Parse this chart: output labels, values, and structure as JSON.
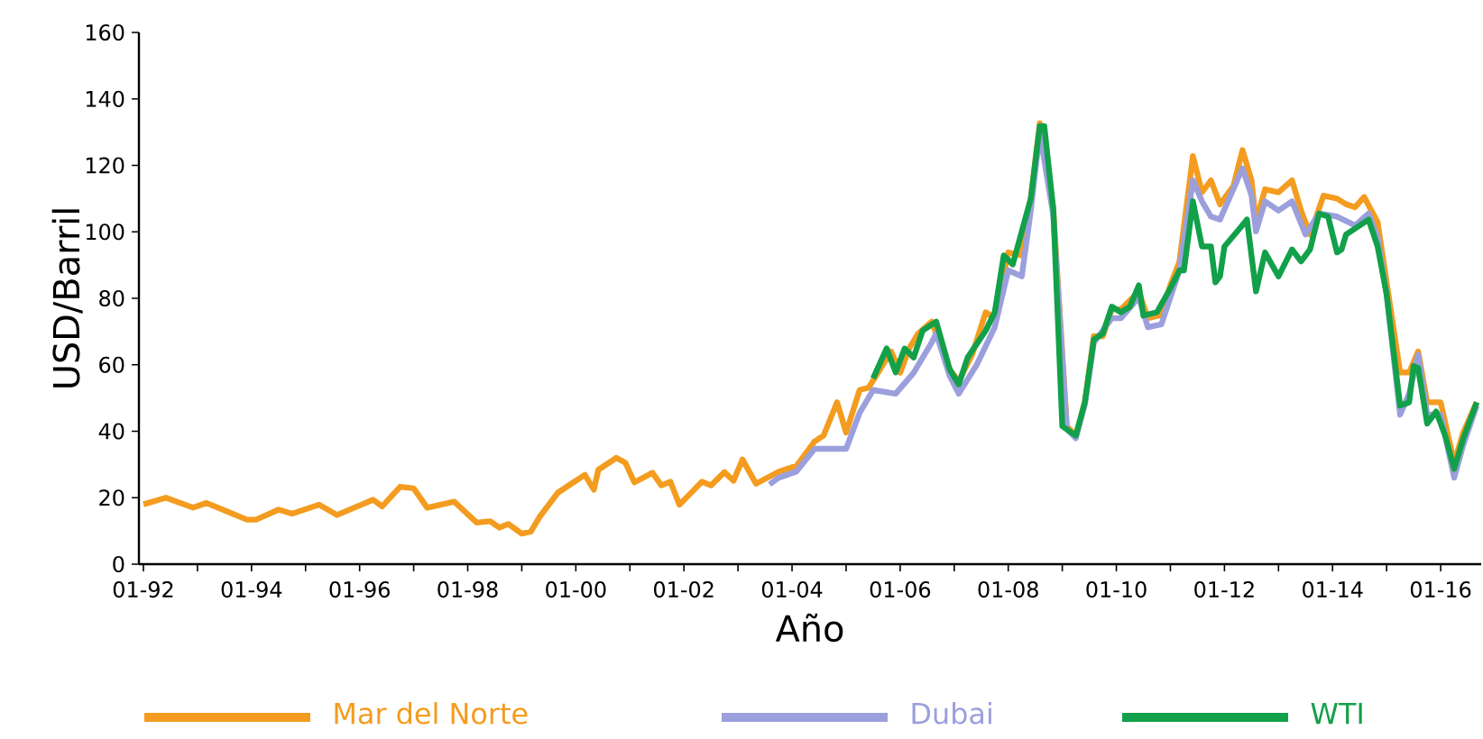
{
  "chart_data": {
    "type": "line",
    "xlabel": "Año",
    "ylabel": "USD/Barril",
    "xlim": [
      "1991-12",
      "2016-10"
    ],
    "ylim": [
      0,
      160
    ],
    "xticks": [
      {
        "value": "1992-01",
        "label": "01-92"
      },
      {
        "value": "1993-01",
        "label": null
      },
      {
        "value": "1994-01",
        "label": "01-94"
      },
      {
        "value": "1995-01",
        "label": null
      },
      {
        "value": "1996-01",
        "label": "01-96"
      },
      {
        "value": "1997-01",
        "label": null
      },
      {
        "value": "1998-01",
        "label": "01-98"
      },
      {
        "value": "1999-01",
        "label": null
      },
      {
        "value": "2000-01",
        "label": "01-00"
      },
      {
        "value": "2001-01",
        "label": null
      },
      {
        "value": "2002-01",
        "label": "01-02"
      },
      {
        "value": "2003-01",
        "label": null
      },
      {
        "value": "2004-01",
        "label": "01-04"
      },
      {
        "value": "2005-01",
        "label": null
      },
      {
        "value": "2006-01",
        "label": "01-06"
      },
      {
        "value": "2007-01",
        "label": null
      },
      {
        "value": "2008-01",
        "label": "01-08"
      },
      {
        "value": "2009-01",
        "label": null
      },
      {
        "value": "2010-01",
        "label": "01-10"
      },
      {
        "value": "2011-01",
        "label": null
      },
      {
        "value": "2012-01",
        "label": "01-12"
      },
      {
        "value": "2013-01",
        "label": null
      },
      {
        "value": "2014-01",
        "label": "01-14"
      },
      {
        "value": "2015-01",
        "label": null
      },
      {
        "value": "2016-01",
        "label": "01-16"
      }
    ],
    "yticks": [
      0,
      20,
      40,
      60,
      80,
      100,
      120,
      140,
      160
    ],
    "grid": false,
    "legend": "bottom",
    "marker": "none",
    "line_style": "solid",
    "series": [
      {
        "name": "Mar del Norte",
        "color": "#f39c1f",
        "x": [
          "1992-01",
          "1992-06",
          "1992-12",
          "1993-03",
          "1993-12",
          "1994-02",
          "1994-07",
          "1994-10",
          "1995-04",
          "1995-08",
          "1996-04",
          "1996-06",
          "1996-10",
          "1997-01",
          "1997-04",
          "1997-10",
          "1998-03",
          "1998-06",
          "1998-08",
          "1998-10",
          "1999-01",
          "1999-03",
          "1999-05",
          "1999-09",
          "1999-12",
          "2000-03",
          "2000-05",
          "2000-06",
          "2000-10",
          "2000-12",
          "2001-02",
          "2001-06",
          "2001-08",
          "2001-10",
          "2001-12",
          "2002-05",
          "2002-07",
          "2002-10",
          "2002-12",
          "2003-02",
          "2003-05",
          "2003-10",
          "2004-02",
          "2004-06",
          "2004-08",
          "2004-11",
          "2005-01",
          "2005-04",
          "2005-06",
          "2005-11",
          "2006-01",
          "2006-03",
          "2006-05",
          "2006-08",
          "2006-12",
          "2007-02",
          "2007-05",
          "2007-08",
          "2007-10",
          "2008-01",
          "2008-04",
          "2008-06",
          "2008-08",
          "2008-11",
          "2009-02",
          "2009-04",
          "2009-06",
          "2009-08",
          "2009-10",
          "2009-12",
          "2010-02",
          "2010-06",
          "2010-08",
          "2010-11",
          "2011-01",
          "2011-03",
          "2011-06",
          "2011-08",
          "2011-10",
          "2011-12",
          "2012-03",
          "2012-05",
          "2012-07",
          "2012-08",
          "2012-10",
          "2013-01",
          "2013-04",
          "2013-06",
          "2013-08",
          "2013-11",
          "2014-02",
          "2014-04",
          "2014-06",
          "2014-08",
          "2014-11",
          "2015-01",
          "2015-04",
          "2015-06",
          "2015-08",
          "2015-10",
          "2016-01",
          "2016-04",
          "2016-06",
          "2016-09"
        ],
        "values": [
          18,
          20,
          17,
          18.4,
          13.4,
          13.4,
          16.4,
          15.2,
          17.9,
          14.8,
          19.4,
          17.4,
          23.3,
          22.8,
          17,
          18.8,
          12.5,
          12.9,
          11,
          12.1,
          9.2,
          9.8,
          14.3,
          21.5,
          24.2,
          26.9,
          22.4,
          28.4,
          32,
          30.5,
          24.6,
          27.5,
          23.7,
          24.8,
          17.9,
          24.8,
          23.7,
          27.7,
          25.1,
          31.5,
          24.2,
          27.8,
          29.6,
          36.9,
          38.7,
          48.7,
          39.6,
          52.4,
          53.1,
          64,
          57.6,
          64.9,
          69.4,
          73,
          58.6,
          55,
          63.1,
          75.8,
          74,
          93.8,
          92.9,
          110,
          132.7,
          106.8,
          41.5,
          38.7,
          48.7,
          68.6,
          68.6,
          76.7,
          76.7,
          82,
          74,
          75,
          84,
          91,
          122.8,
          111.9,
          115.5,
          108.3,
          113.8,
          124.6,
          115.5,
          102.9,
          112.8,
          111.9,
          115.5,
          106.4,
          99.2,
          110.9,
          110,
          108.3,
          107.4,
          110.5,
          102.9,
          84.8,
          57.7,
          57.7,
          64,
          48.7,
          48.7,
          30.5,
          39.6,
          48.7
        ]
      },
      {
        "name": "Dubai",
        "color": "#9b9fdc",
        "x": [
          "2003-08",
          "2003-10",
          "2004-02",
          "2004-06",
          "2005-01",
          "2005-04",
          "2005-07",
          "2005-12",
          "2006-04",
          "2006-08",
          "2006-09",
          "2006-12",
          "2007-02",
          "2007-06",
          "2007-10",
          "2008-01",
          "2008-04",
          "2008-06",
          "2008-08",
          "2008-11",
          "2009-02",
          "2009-04",
          "2009-06",
          "2009-08",
          "2009-12",
          "2010-02",
          "2010-06",
          "2010-08",
          "2010-11",
          "2011-03",
          "2011-06",
          "2011-08",
          "2011-10",
          "2011-12",
          "2012-05",
          "2012-07",
          "2012-08",
          "2012-10",
          "2013-01",
          "2013-04",
          "2013-07",
          "2013-10",
          "2014-02",
          "2014-06",
          "2014-09",
          "2014-11",
          "2015-01",
          "2015-04",
          "2015-06",
          "2015-08",
          "2015-10",
          "2016-01",
          "2016-04",
          "2016-06",
          "2016-09"
        ],
        "values": [
          24,
          26,
          27.9,
          34.7,
          34.7,
          45.5,
          52.4,
          51.3,
          57.6,
          66.7,
          69.4,
          56.7,
          51.3,
          60,
          71.3,
          88.4,
          86.6,
          106.4,
          130,
          105,
          40.7,
          37.9,
          48,
          66.7,
          74,
          74,
          80.3,
          71.3,
          72.2,
          88.4,
          115.5,
          109.2,
          104.6,
          103.7,
          119.1,
          111,
          100.1,
          109.2,
          106.4,
          109.2,
          99.2,
          105.5,
          104.6,
          101.9,
          105.5,
          98.3,
          81.2,
          45,
          51.3,
          63,
          45,
          45,
          26,
          35.8,
          47.7
        ]
      },
      {
        "name": "WTI",
        "color": "#12a04a",
        "x": [
          "2005-07",
          "2005-10",
          "2005-12",
          "2006-02",
          "2006-04",
          "2006-06",
          "2006-09",
          "2006-12",
          "2007-02",
          "2007-04",
          "2007-08",
          "2007-10",
          "2007-12",
          "2008-02",
          "2008-06",
          "2008-08",
          "2008-09",
          "2008-11",
          "2009-01",
          "2009-04",
          "2009-06",
          "2009-08",
          "2009-10",
          "2009-12",
          "2010-02",
          "2010-04",
          "2010-06",
          "2010-07",
          "2010-10",
          "2011-01",
          "2011-03",
          "2011-04",
          "2011-06",
          "2011-08",
          "2011-10",
          "2011-11",
          "2011-12",
          "2012-01",
          "2012-05",
          "2012-06",
          "2012-08",
          "2012-10",
          "2013-01",
          "2013-04",
          "2013-06",
          "2013-08",
          "2013-10",
          "2013-12",
          "2014-02",
          "2014-03",
          "2014-04",
          "2014-06",
          "2014-09",
          "2014-11",
          "2015-01",
          "2015-04",
          "2015-06",
          "2015-07",
          "2015-08",
          "2015-10",
          "2015-12",
          "2016-02",
          "2016-04",
          "2016-06",
          "2016-09"
        ],
        "values": [
          55.9,
          64.9,
          57.7,
          64.9,
          62.2,
          70.3,
          73,
          58.6,
          54.1,
          62.2,
          70.3,
          75.8,
          92.9,
          90.2,
          110,
          131.8,
          131.8,
          106.8,
          41.5,
          38.7,
          48.7,
          67.6,
          69.4,
          77.5,
          75.8,
          77.5,
          83.9,
          74.8,
          75.8,
          83,
          88.4,
          88.4,
          109.2,
          95.6,
          95.6,
          84.8,
          86.6,
          95.6,
          102,
          103.7,
          82.1,
          93.8,
          86.6,
          94.7,
          91.1,
          94.7,
          105.5,
          104.6,
          93.8,
          94.7,
          99.2,
          101,
          103.7,
          95.6,
          81.2,
          47.7,
          48.7,
          59.6,
          59,
          42.3,
          45.9,
          38.7,
          28.7,
          37.7,
          48.7
        ]
      }
    ]
  }
}
